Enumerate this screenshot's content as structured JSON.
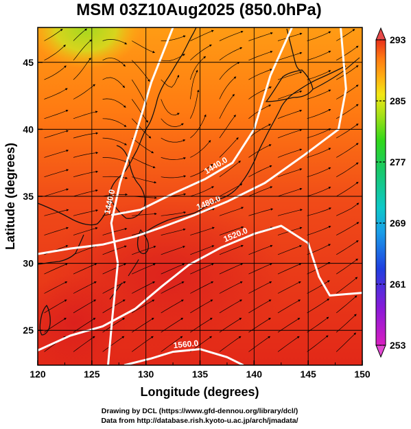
{
  "title": "MSM 03Z10Aug2025 (850.0hPa)",
  "xlabel": "Longitude (degrees)",
  "ylabel": "Latitude  (degrees)",
  "footer": {
    "line1": "Drawing by DCL (https://www.gfd-dennou.org/library/dcl/)",
    "line2": "Data from http://database.rish.kyoto-u.ac.jp/arch/jmadata/"
  },
  "map": {
    "xlim": [
      120,
      150
    ],
    "ylim": [
      22.4,
      47.6
    ],
    "x_ticks": [
      "120",
      "125",
      "130",
      "135",
      "140",
      "145",
      "150"
    ],
    "y_ticks": [
      "25",
      "30",
      "35",
      "40",
      "45"
    ],
    "field": "temperature",
    "wind_field": "streamlines",
    "contour_field": "geopotential height",
    "contours": [
      {
        "label": "1440.0",
        "points": [
          [
            126.5,
            22.4
          ],
          [
            126.9,
            26.0
          ],
          [
            127.4,
            30.0
          ],
          [
            126.8,
            33.0
          ],
          [
            127.6,
            36.0
          ],
          [
            129.0,
            39.5
          ],
          [
            130.5,
            43.5
          ],
          [
            132.5,
            47.6
          ]
        ]
      },
      {
        "label": "1440.0",
        "points": [
          [
            126.8,
            33.6
          ],
          [
            129.5,
            34.0
          ],
          [
            132.5,
            35.2
          ],
          [
            135.5,
            36.3
          ],
          [
            138.0,
            37.5
          ],
          [
            140.0,
            40.0
          ],
          [
            141.5,
            44.0
          ],
          [
            143.5,
            47.6
          ]
        ]
      },
      {
        "label": "1480.0",
        "points": [
          [
            120.0,
            30.7
          ],
          [
            123.0,
            31.1
          ],
          [
            126.0,
            31.4
          ],
          [
            129.0,
            32.0
          ],
          [
            131.5,
            32.7
          ],
          [
            134.5,
            33.6
          ],
          [
            137.5,
            34.6
          ],
          [
            141.0,
            36.0
          ],
          [
            144.5,
            38.0
          ],
          [
            147.8,
            40.0
          ],
          [
            148.5,
            43.0
          ],
          [
            148.0,
            47.6
          ]
        ]
      },
      {
        "label": "1520.0",
        "points": [
          [
            120.0,
            23.5
          ],
          [
            123.0,
            24.6
          ],
          [
            126.0,
            25.3
          ],
          [
            129.0,
            26.6
          ],
          [
            131.5,
            28.3
          ],
          [
            134.0,
            29.9
          ],
          [
            137.0,
            31.2
          ],
          [
            140.0,
            32.2
          ],
          [
            142.5,
            32.8
          ],
          [
            145.0,
            31.5
          ],
          [
            146.0,
            29.0
          ],
          [
            147.0,
            27.6
          ],
          [
            150.0,
            27.8
          ]
        ]
      },
      {
        "label": "1560.0",
        "points": [
          [
            128.0,
            22.4
          ],
          [
            130.5,
            22.9
          ],
          [
            132.5,
            23.4
          ],
          [
            135.0,
            23.6
          ],
          [
            137.5,
            23.0
          ],
          [
            139.0,
            22.4
          ]
        ]
      }
    ]
  },
  "colorbar": {
    "min": 253,
    "max": 293,
    "tick_labels": [
      "293",
      "285",
      "277",
      "269",
      "261",
      "253"
    ]
  },
  "colors": {
    "warm": "#e8301a",
    "mid": "#ff8a10",
    "cool": "#98d820",
    "contour": "#ffffff",
    "streamline": "#000000"
  }
}
